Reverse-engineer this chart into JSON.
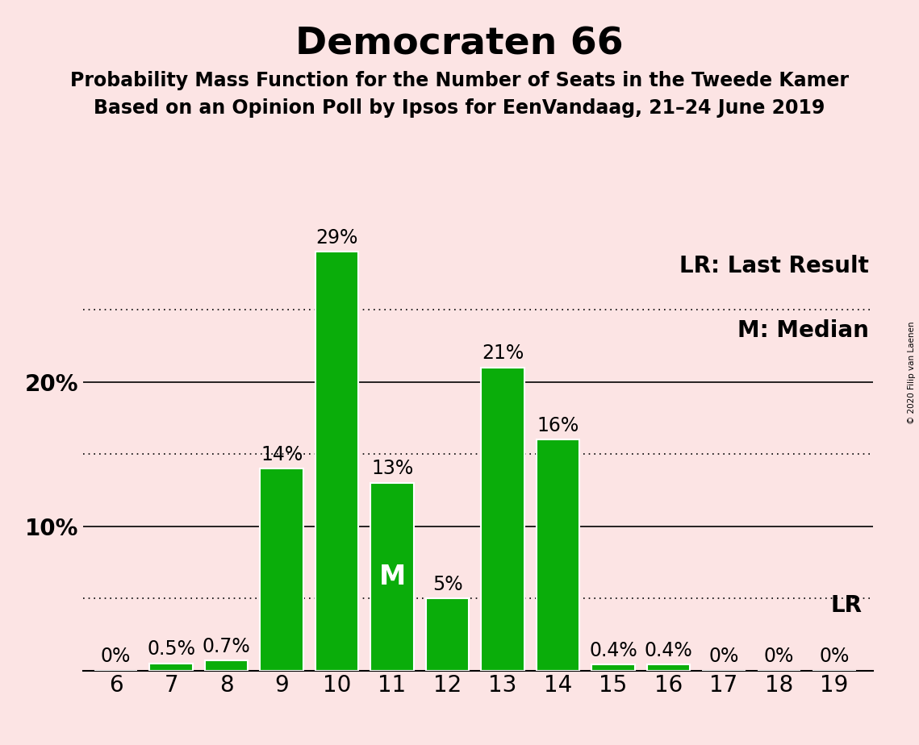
{
  "title": "Democraten 66",
  "subtitle1": "Probability Mass Function for the Number of Seats in the Tweede Kamer",
  "subtitle2": "Based on an Opinion Poll by Ipsos for EenVandaag, 21–24 June 2019",
  "copyright": "© 2020 Filip van Laenen",
  "legend_lr": "LR: Last Result",
  "legend_m": "M: Median",
  "seats": [
    6,
    7,
    8,
    9,
    10,
    11,
    12,
    13,
    14,
    15,
    16,
    17,
    18,
    19
  ],
  "probabilities": [
    0.0,
    0.5,
    0.7,
    14.0,
    29.0,
    13.0,
    5.0,
    21.0,
    16.0,
    0.4,
    0.4,
    0.0,
    0.0,
    0.0
  ],
  "bar_color": "#0aad0a",
  "background_color": "#fce4e4",
  "bar_edge_color": "#ffffff",
  "median_seat": 11,
  "lr_seat": 19,
  "ylim": [
    0,
    32
  ],
  "ytick_labels_show": [
    10,
    20
  ],
  "grid_lines_dotted": [
    5,
    15,
    25
  ],
  "grid_lines_solid": [
    10,
    20
  ],
  "title_fontsize": 34,
  "subtitle_fontsize": 17,
  "tick_fontsize": 20,
  "bar_label_fontsize": 17,
  "legend_fontsize": 20,
  "m_fontsize": 24
}
